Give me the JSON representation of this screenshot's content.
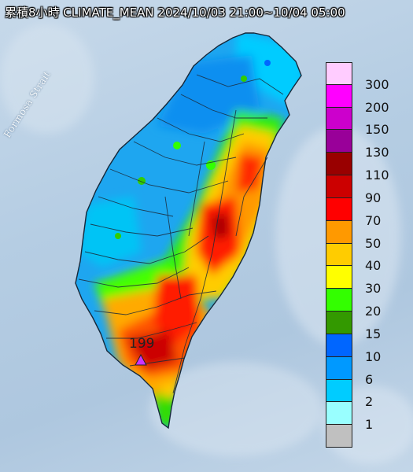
{
  "header": {
    "title": "累積8小時 CLIMATE_MEAN 2024/10/03 21:00~10/04 05:00"
  },
  "map_labels": {
    "strait": "Formosa Strait",
    "max_value": "199"
  },
  "legend": {
    "boundaries": [
      "1",
      "2",
      "6",
      "10",
      "15",
      "20",
      "30",
      "40",
      "50",
      "70",
      "90",
      "110",
      "130",
      "150",
      "200",
      "300"
    ],
    "colors": [
      "#c0c0c0",
      "#99ffff",
      "#00ccff",
      "#0099ff",
      "#0066ff",
      "#339900",
      "#33ff00",
      "#ffff00",
      "#ffcc00",
      "#ff9900",
      "#ff0000",
      "#cc0000",
      "#990000",
      "#990099",
      "#cc00cc",
      "#ff00ff",
      "#ffccff"
    ]
  },
  "colors": {
    "ocean": "#b5cde3",
    "county_border": "#1b2a3a",
    "marker": "#cc33ff"
  }
}
